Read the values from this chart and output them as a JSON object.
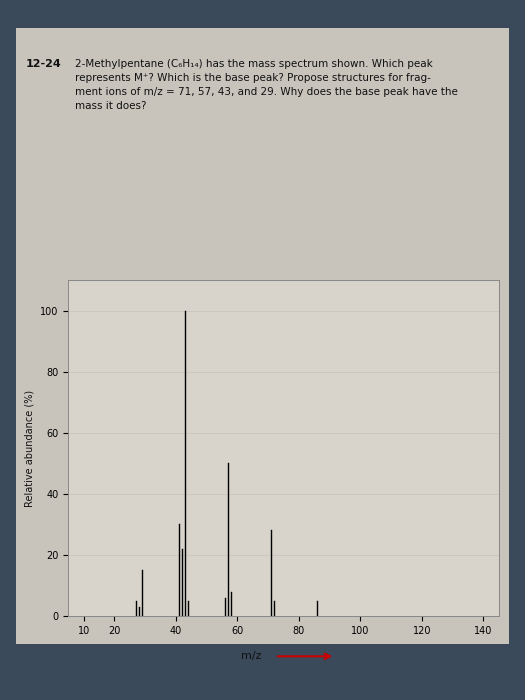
{
  "title_problem": "12-24",
  "title_text": "2-Methylpentane (C₆H₁₄) has the mass spectrum shown. Which peak\nrepresents M⁺? Which is the base peak? Propose structures for frag-\nment ions of m/z = 71, 57, 43, and 29. Why does the base peak have the\nmass it does?",
  "xlabel": "m/z",
  "ylabel": "Relative abundance (%)",
  "xlim": [
    5,
    145
  ],
  "ylim": [
    0,
    110
  ],
  "xticks": [
    10,
    20,
    40,
    60,
    80,
    100,
    120,
    140
  ],
  "yticks": [
    0,
    20,
    40,
    60,
    80,
    100
  ],
  "peaks": [
    {
      "mz": 27,
      "rel": 5
    },
    {
      "mz": 28,
      "rel": 3
    },
    {
      "mz": 29,
      "rel": 15
    },
    {
      "mz": 41,
      "rel": 30
    },
    {
      "mz": 42,
      "rel": 22
    },
    {
      "mz": 43,
      "rel": 100
    },
    {
      "mz": 44,
      "rel": 5
    },
    {
      "mz": 56,
      "rel": 6
    },
    {
      "mz": 57,
      "rel": 50
    },
    {
      "mz": 58,
      "rel": 8
    },
    {
      "mz": 71,
      "rel": 28
    },
    {
      "mz": 72,
      "rel": 5
    },
    {
      "mz": 86,
      "rel": 5
    }
  ],
  "bar_color": "#000000",
  "background_color": "#e8e4dc",
  "plot_bg_color": "#d8d4cc",
  "arrow_color": "#cc0000",
  "text_color": "#111111",
  "grid_color": "#aaaaaa",
  "outer_bg": "#3a4a5a",
  "page_bg": "#c8c4bc"
}
